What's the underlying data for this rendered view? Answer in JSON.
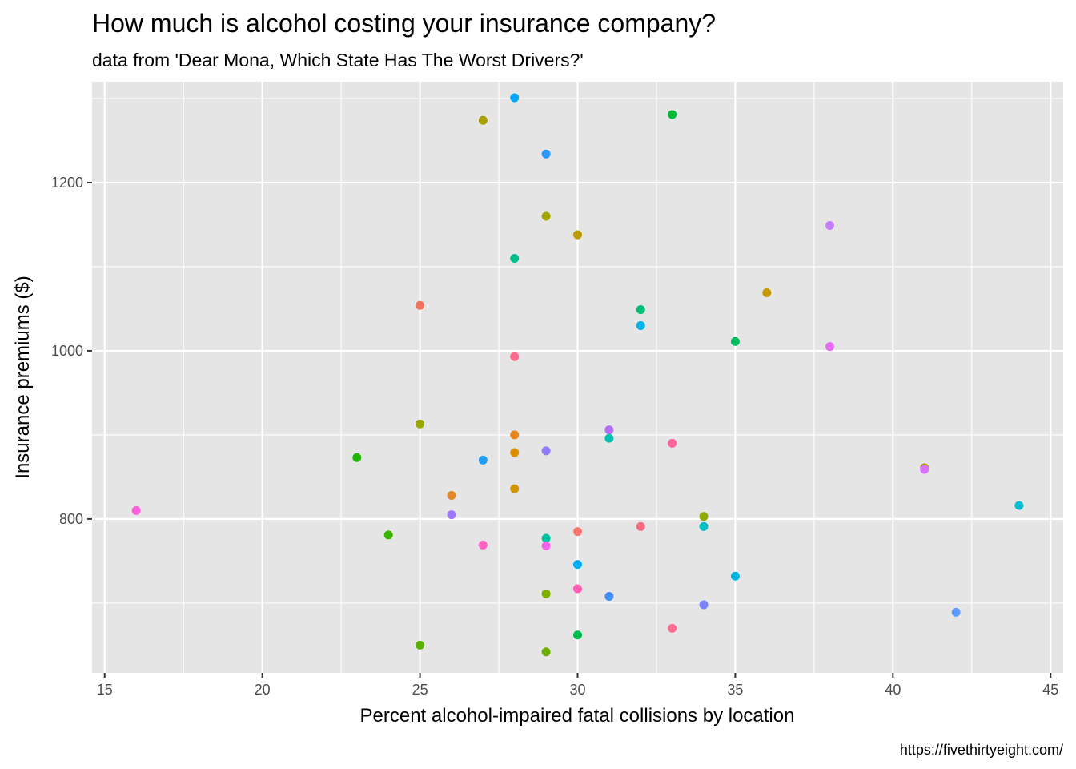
{
  "chart_data": {
    "type": "scatter",
    "title": "How much is alcohol costing your insurance company?",
    "subtitle": "data from 'Dear Mona, Which State Has The Worst Drivers?'",
    "xlabel": "Percent alcohol-impaired fatal collisions by location",
    "ylabel": "Insurance premiums ($)",
    "caption": "https://fivethirtyeight.com/",
    "xlim": [
      14.6,
      45.4
    ],
    "ylim": [
      617,
      1320
    ],
    "x_ticks": [
      15,
      20,
      25,
      30,
      35,
      40,
      45
    ],
    "x_tick_labels": [
      "15",
      "20",
      "25",
      "30",
      "35",
      "40",
      "45"
    ],
    "y_ticks": [
      800,
      1000,
      1200
    ],
    "y_tick_labels": [
      "800",
      "1000",
      "1200"
    ],
    "grid": true,
    "legend": "none",
    "points": [
      {
        "x": 30,
        "y": 785,
        "color": "#F8766D"
      },
      {
        "x": 25,
        "y": 1054,
        "color": "#F2745F"
      },
      {
        "x": 28,
        "y": 900,
        "color": "#E7861B"
      },
      {
        "x": 26,
        "y": 828,
        "color": "#E28A2A"
      },
      {
        "x": 28,
        "y": 879,
        "color": "#DC8E00"
      },
      {
        "x": 28,
        "y": 836,
        "color": "#CF9400"
      },
      {
        "x": 36,
        "y": 1069,
        "color": "#C69800"
      },
      {
        "x": 30,
        "y": 1138,
        "color": "#BA9C00"
      },
      {
        "x": 41,
        "y": 861,
        "color": "#B09F00"
      },
      {
        "x": 27,
        "y": 1274,
        "color": "#A89F00"
      },
      {
        "x": 29,
        "y": 1160,
        "color": "#A3A500"
      },
      {
        "x": 25,
        "y": 913,
        "color": "#99A800"
      },
      {
        "x": 34,
        "y": 803,
        "color": "#8CAB00"
      },
      {
        "x": 29,
        "y": 711,
        "color": "#7CAE00"
      },
      {
        "x": 29,
        "y": 642,
        "color": "#6FB100"
      },
      {
        "x": 25,
        "y": 650,
        "color": "#5BB300"
      },
      {
        "x": 24,
        "y": 781,
        "color": "#3CB500"
      },
      {
        "x": 23,
        "y": 873,
        "color": "#1FB700"
      },
      {
        "x": 33,
        "y": 1281,
        "color": "#00BA38"
      },
      {
        "x": 30,
        "y": 662,
        "color": "#00BB4E"
      },
      {
        "x": 35,
        "y": 1011,
        "color": "#00BD5F"
      },
      {
        "x": 32,
        "y": 1049,
        "color": "#00BF74"
      },
      {
        "x": 28,
        "y": 1110,
        "color": "#00C08B"
      },
      {
        "x": 29,
        "y": 777,
        "color": "#00C19F"
      },
      {
        "x": 31,
        "y": 896,
        "color": "#00C0AF"
      },
      {
        "x": 34,
        "y": 791,
        "color": "#00BFC4"
      },
      {
        "x": 44,
        "y": 816,
        "color": "#00BDD0"
      },
      {
        "x": 35,
        "y": 732,
        "color": "#00B9E3"
      },
      {
        "x": 32,
        "y": 1030,
        "color": "#00B4EF"
      },
      {
        "x": 30,
        "y": 746,
        "color": "#00ADFA"
      },
      {
        "x": 28,
        "y": 1301,
        "color": "#00A5FF"
      },
      {
        "x": 27,
        "y": 870,
        "color": "#1E9EF5"
      },
      {
        "x": 29,
        "y": 1234,
        "color": "#2F96FF"
      },
      {
        "x": 31,
        "y": 708,
        "color": "#3E8CF7"
      },
      {
        "x": 42,
        "y": 689,
        "color": "#619CFF"
      },
      {
        "x": 34,
        "y": 698,
        "color": "#7C82FF"
      },
      {
        "x": 29,
        "y": 881,
        "color": "#8F7DF5"
      },
      {
        "x": 26,
        "y": 805,
        "color": "#9F76FF"
      },
      {
        "x": 31,
        "y": 906,
        "color": "#B56FF7"
      },
      {
        "x": 38,
        "y": 1149,
        "color": "#C77CFF"
      },
      {
        "x": 41,
        "y": 859,
        "color": "#DB72FB"
      },
      {
        "x": 38,
        "y": 1005,
        "color": "#E76BF3"
      },
      {
        "x": 29,
        "y": 768,
        "color": "#F066E6"
      },
      {
        "x": 16,
        "y": 810,
        "color": "#FA62DB"
      },
      {
        "x": 27,
        "y": 769,
        "color": "#FF61C3"
      },
      {
        "x": 30,
        "y": 717,
        "color": "#FF5FB2"
      },
      {
        "x": 33,
        "y": 890,
        "color": "#FF649F"
      },
      {
        "x": 28,
        "y": 993,
        "color": "#FC6A8E"
      },
      {
        "x": 32,
        "y": 791,
        "color": "#F8697F"
      },
      {
        "x": 33,
        "y": 670,
        "color": "#FF6C91"
      }
    ]
  }
}
